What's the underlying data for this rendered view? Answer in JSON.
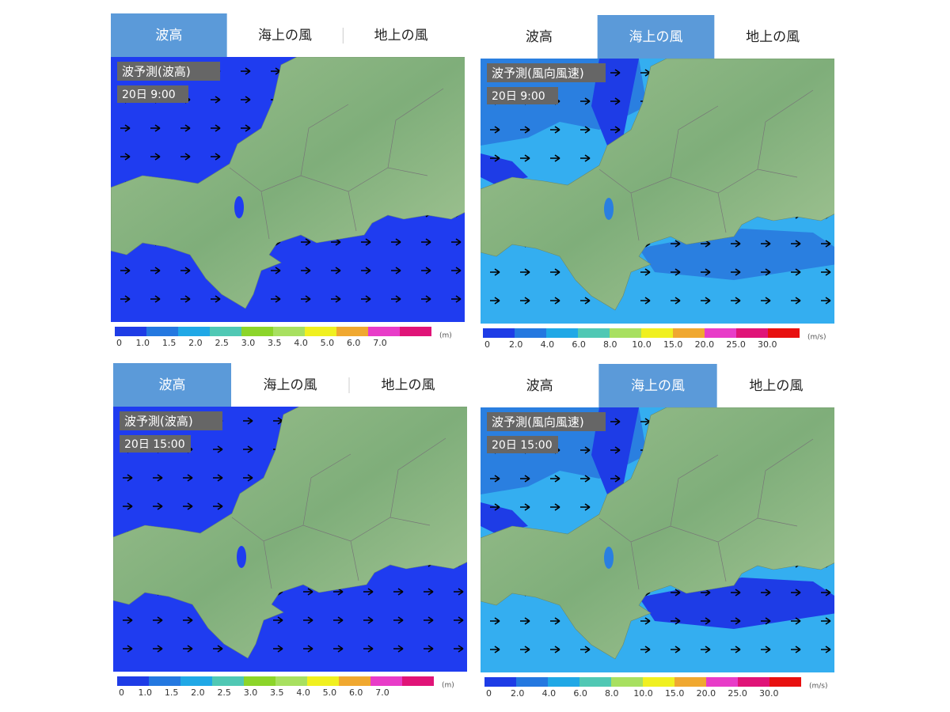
{
  "panels": [
    {
      "tabs": [
        "波高",
        "海上の風",
        "地上の風"
      ],
      "active_tab": 0,
      "map_title": "波予測(波高)",
      "time": "20日 9:00",
      "legend": {
        "ticks": [
          "0",
          "1.0",
          "1.5",
          "2.0",
          "2.5",
          "3.0",
          "3.5",
          "4.0",
          "5.0",
          "6.0",
          "7.0"
        ],
        "unit": "(m)",
        "colors": [
          "#1e3ce6",
          "#2478e0",
          "#20a8e6",
          "#50c8b4",
          "#8cd52a",
          "#a8e060",
          "#f0f020",
          "#f0a830",
          "#e83cc8",
          "#e01478",
          "#e81010"
        ]
      }
    },
    {
      "tabs": [
        "波高",
        "海上の風",
        "地上の風"
      ],
      "active_tab": 1,
      "map_title": "波予測(風向風速)",
      "time": "20日 9:00",
      "legend": {
        "ticks": [
          "0",
          "2.0",
          "4.0",
          "6.0",
          "8.0",
          "10.0",
          "15.0",
          "20.0",
          "25.0",
          "30.0"
        ],
        "unit": "(m/s)",
        "colors": [
          "#1e3ce6",
          "#2478e0",
          "#20a8e6",
          "#50c8b4",
          "#a8e060",
          "#f0f020",
          "#f0a830",
          "#e83cc8",
          "#e01478",
          "#e81010"
        ]
      }
    },
    {
      "tabs": [
        "波高",
        "海上の風",
        "地上の風"
      ],
      "active_tab": 0,
      "map_title": "波予測(波高)",
      "time": "20日 15:00",
      "legend": {
        "ticks": [
          "0",
          "1.0",
          "1.5",
          "2.0",
          "2.5",
          "3.0",
          "3.5",
          "4.0",
          "5.0",
          "6.0",
          "7.0"
        ],
        "unit": "(m)",
        "colors": [
          "#1e3ce6",
          "#2478e0",
          "#20a8e6",
          "#50c8b4",
          "#8cd52a",
          "#a8e060",
          "#f0f020",
          "#f0a830",
          "#e83cc8",
          "#e01478",
          "#e81010"
        ]
      }
    },
    {
      "tabs": [
        "波高",
        "海上の風",
        "地上の風"
      ],
      "active_tab": 1,
      "map_title": "波予測(風向風速)",
      "time": "20日 15:00",
      "legend": {
        "ticks": [
          "0",
          "2.0",
          "4.0",
          "6.0",
          "8.0",
          "10.0",
          "15.0",
          "20.0",
          "25.0",
          "30.0"
        ],
        "unit": "(m/s)",
        "colors": [
          "#1e3ce6",
          "#2478e0",
          "#20a8e6",
          "#50c8b4",
          "#a8e060",
          "#f0f020",
          "#f0a830",
          "#e83cc8",
          "#e01478",
          "#e81010"
        ]
      }
    }
  ]
}
